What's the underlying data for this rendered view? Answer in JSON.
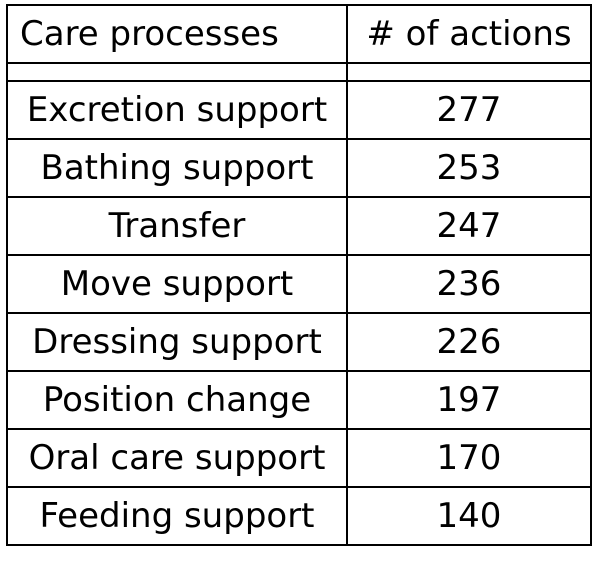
{
  "table": {
    "headers": [
      "Care processes",
      "# of actions"
    ],
    "rows": [
      {
        "process": "Excretion support",
        "actions": "277"
      },
      {
        "process": "Bathing support",
        "actions": "253"
      },
      {
        "process": "Transfer",
        "actions": "247"
      },
      {
        "process": "Move support",
        "actions": "236"
      },
      {
        "process": "Dressing support",
        "actions": "226"
      },
      {
        "process": "Position change",
        "actions": "197"
      },
      {
        "process": "Oral care support",
        "actions": "170"
      },
      {
        "process": "Feeding support",
        "actions": "140"
      }
    ]
  }
}
